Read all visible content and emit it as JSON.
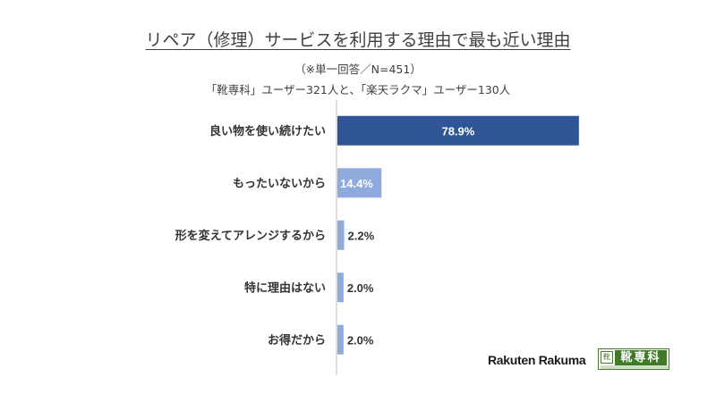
{
  "header": {
    "title": "リペア（修理）サービスを利用する理由で最も近い理由",
    "subtitle1": "（※単一回答／N=451）",
    "subtitle2": "「靴専科」ユーザー321人と、「楽天ラクマ」ユーザー130人"
  },
  "logos": {
    "rakuten": "Rakuten Rakuma",
    "kutsusenka": "靴専科"
  },
  "colors": {
    "highlight_bar": "#2f5597",
    "bar": "#8faadc",
    "axis": "#bfbfbf"
  },
  "chart_data": {
    "type": "bar",
    "orientation": "horizontal",
    "categories": [
      "良い物を使い続けたい",
      "もったいないから",
      "形を変えてアレンジするから",
      "特に理由はない",
      "お得だから"
    ],
    "values": [
      78.9,
      14.4,
      2.2,
      2.0,
      2.0
    ],
    "labels": [
      "78.9%",
      "14.4%",
      "2.2%",
      "2.0%",
      "2.0%"
    ],
    "xlim": [
      0,
      100
    ],
    "grid": false
  }
}
